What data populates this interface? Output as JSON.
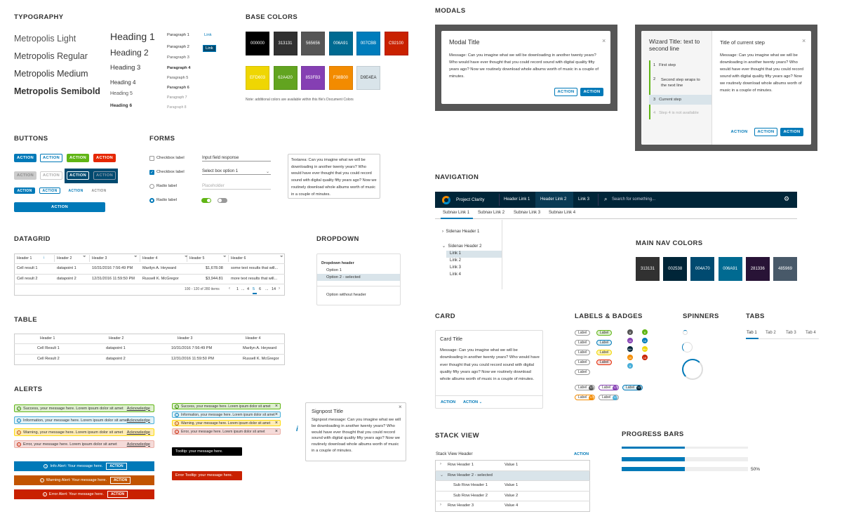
{
  "sections": {
    "typography": "TYPOGRAPHY",
    "base_colors": "BASE COLORS",
    "modals": "MODALS",
    "buttons": "BUTTONS",
    "forms": "FORMS",
    "navigation": "NAVIGATION",
    "datagrid": "DATAGRID",
    "dropdown": "DROPDOWN",
    "main_nav_colors": "MAIN NAV COLORS",
    "table": "TABLE",
    "card": "CARD",
    "labels_badges": "LABELS & BADGES",
    "spinners": "SPINNERS",
    "tabs": "TABS",
    "alerts": "ALERTS",
    "stack_view": "STACK VIEW",
    "progress_bars": "PROGRESS BARS"
  },
  "typography": {
    "fonts": [
      "Metropolis Light",
      "Metropolis Regular",
      "Metropolis Medium",
      "Metropolis Semibold"
    ],
    "headings": [
      "Heading 1",
      "Heading 2",
      "Heading 3",
      "Heading 4",
      "Heading 5",
      "Heading 6"
    ],
    "paragraphs": [
      "Paragraph 1",
      "Paragraph 2",
      "Paragraph 3",
      "Paragraph 4",
      "Paragraph 5",
      "Paragraph 6",
      "Paragraph 7",
      "Paragraph 8"
    ],
    "link": "Link",
    "link_active": "Link"
  },
  "base_colors": {
    "row1": [
      {
        "hex": "000000",
        "color": "#000000"
      },
      {
        "hex": "313131",
        "color": "#313131"
      },
      {
        "hex": "565656",
        "color": "#565656"
      },
      {
        "hex": "006A91",
        "color": "#006A91"
      },
      {
        "hex": "007CBB",
        "color": "#007CBB"
      },
      {
        "hex": "C92100",
        "color": "#C92100"
      }
    ],
    "row2": [
      {
        "hex": "EFD603",
        "color": "#EFD603"
      },
      {
        "hex": "62A420",
        "color": "#62A420"
      },
      {
        "hex": "853FB3",
        "color": "#853FB3"
      },
      {
        "hex": "F38B00",
        "color": "#F38B00"
      },
      {
        "hex": "D9E4EA",
        "color": "#D9E4EA"
      }
    ],
    "note": "Note: additional colors are available within this file's Document Colors"
  },
  "modal": {
    "title": "Modal Title",
    "message": "Message: Can you imagine what we will be downloading in another twenty years? Who would have ever thought that you could record sound with digital quality fifty years ago? Now we routinely download whole albums worth of music in a couple of minutes.",
    "btn_outline": "ACTION",
    "btn_primary": "ACTION"
  },
  "wizard": {
    "title": "Wizard Title: text to second line",
    "steps": [
      {
        "num": "1",
        "label": "First step"
      },
      {
        "num": "2",
        "label": "Second step wraps to the next line"
      },
      {
        "num": "3",
        "label": "Current step"
      },
      {
        "num": "4",
        "label": "Step 4 is not available"
      }
    ],
    "content_title": "Title of current step",
    "message": "Message: Can you imagine what we will be downloading in another twenty years? Who would have ever thought that you could record sound with digital quality fifty years ago? Now we routinely download whole albums worth of music in a couple of minutes.",
    "btn_link": "ACTION",
    "btn_outline": "ACTION",
    "btn_primary": "ACTION"
  },
  "buttons": {
    "action": "ACTION"
  },
  "forms": {
    "checkbox1": "Checkbox label",
    "checkbox2": "Checkbox label",
    "radio1": "Radio label",
    "radio2": "Radio label",
    "input_value": "Input field response",
    "select_value": "Select box option 1",
    "placeholder": "Placeholder",
    "textarea": "Textarea: Can you imagine what we will be downloading in another twenty years? Who would have ever thought that you could record sound with digital quality fifty years ago? Now we routinely download whole albums worth of music in a couple of minutes."
  },
  "nav": {
    "brand": "Project Clarity",
    "links": [
      "Header Link 1",
      "Header Link 2",
      "Link 3"
    ],
    "search": "Search for something...",
    "subnav": [
      "Subnav Link 1",
      "Subnav Link 2",
      "Subnav Link 3",
      "Subnav Link 4"
    ],
    "sidenav_h1": "Sidenav Header 1",
    "sidenav_h2": "Sidenav Header 2",
    "sidenav_links": [
      "Link 1",
      "Link 2",
      "Link 3",
      "Link 4"
    ]
  },
  "main_nav_colors": [
    {
      "hex": "313131",
      "color": "#313131"
    },
    {
      "hex": "002538",
      "color": "#002538"
    },
    {
      "hex": "004A70",
      "color": "#004A70"
    },
    {
      "hex": "006A91",
      "color": "#006A91"
    },
    {
      "hex": "281336",
      "color": "#281336"
    },
    {
      "hex": "485969",
      "color": "#485969"
    }
  ],
  "datagrid": {
    "headers": [
      "Header 1",
      "Header 2",
      "Header 3",
      "Header 4",
      "Header 5",
      "Header 6"
    ],
    "rows": [
      [
        "Cell result 1",
        "datapoint 1",
        "10/31/2016 7:56:49 PM",
        "Marilyn A. Heyward",
        "$1,678.08",
        "some text results that will..."
      ],
      [
        "Cell result 2",
        "datapoint 2",
        "12/31/2016 11:59:50 PM",
        "Russell K. McGregor",
        "$3,944.81",
        "more text results that will..."
      ]
    ],
    "footer": "100 - 120 of 280 items",
    "pages": [
      "1",
      "...",
      "4",
      "5",
      "6",
      "...",
      "14"
    ]
  },
  "dropdown": {
    "header": "Dropdown header",
    "items": [
      "Option 1",
      "Option 2 - selected"
    ],
    "no_header": "Option without header"
  },
  "table": {
    "headers": [
      "Header 1",
      "Header 2",
      "Header 3",
      "Header 4"
    ],
    "rows": [
      [
        "Cell Result 1",
        "datapoint 1",
        "10/31/2016 7:56:49 PM",
        "Marilyn A. Heyward"
      ],
      [
        "Cell Result 2",
        "datapoint 2",
        "12/31/2016 11:59:50 PM",
        "Russell K. McGregor"
      ]
    ]
  },
  "card": {
    "title": "Card Title",
    "message": "Message: Can you imagine what we will be downloading in another twenty years? Who would have ever thought that you could record sound with digital quality fifty years ago? Now we routinely download whole albums worth of music in a couple of minutes.",
    "action1": "ACTION",
    "action2": "ACTION"
  },
  "labels": {
    "label": "Label",
    "badges": [
      "8",
      "8",
      "15",
      "15",
      "99+",
      "99+",
      "15",
      "15",
      "8"
    ],
    "counts": [
      "12",
      "12",
      "12",
      "12",
      "12"
    ]
  },
  "tabs": [
    "Tab 1",
    "Tab 2",
    "Tab 3",
    "Tab 4"
  ],
  "alerts": {
    "success": "Success, your message here. Lorem ipsum dolor sit amet",
    "info": "Information, your message here. Lorem ipsum dolor sit amet",
    "warning": "Warning, your message here. Lorem ipsum dolor sit amet",
    "error": "Error, your message here. Lorem ipsum dolor sit amet",
    "ack": "Acknowledge",
    "success_s": "Success, your message here. Lorem ipsum dolor sit amet",
    "info_s": "Information, your message here. Lorem ipsum dolor sit amet",
    "warning_s": "Warning, your message here. Lorem ipsum dolor sit amet",
    "error_s": "Error, your message here. Lorem ipsum dolor sit amet",
    "tooltip": "Tooltip: your message here.",
    "error_tooltip": "Error Tooltip: your message here.",
    "info_app": "Info Alert: Your message here.",
    "warning_app": "Warning Alert: Your message here.",
    "error_app": "Error Alert: Your message here.",
    "app_action": "ACTION"
  },
  "signpost": {
    "title": "Signpost Title",
    "message": "Signpost message: Can you imagine what we will be downloading in another twenty years? Who would have ever thought that you could record sound with digital quality fifty years ago? Now we routinely download whole albums worth of music in a couple of minutes.",
    "icon": "i"
  },
  "stack": {
    "header": "Stack View Header",
    "action": "ACTION",
    "rows": [
      {
        "label": "Row Header 1",
        "value": "Value 1"
      },
      {
        "label": "Row Header 2 - selected",
        "value": ""
      },
      {
        "label": "Sub Row Header 1",
        "value": "Value 1"
      },
      {
        "label": "Sub Row Header 2",
        "value": "Value 2"
      },
      {
        "label": "Row Header 3",
        "value": "Value 4"
      }
    ]
  },
  "progress": {
    "bars": [
      0.5,
      0.5,
      0.5
    ],
    "pct_label": "50%"
  }
}
